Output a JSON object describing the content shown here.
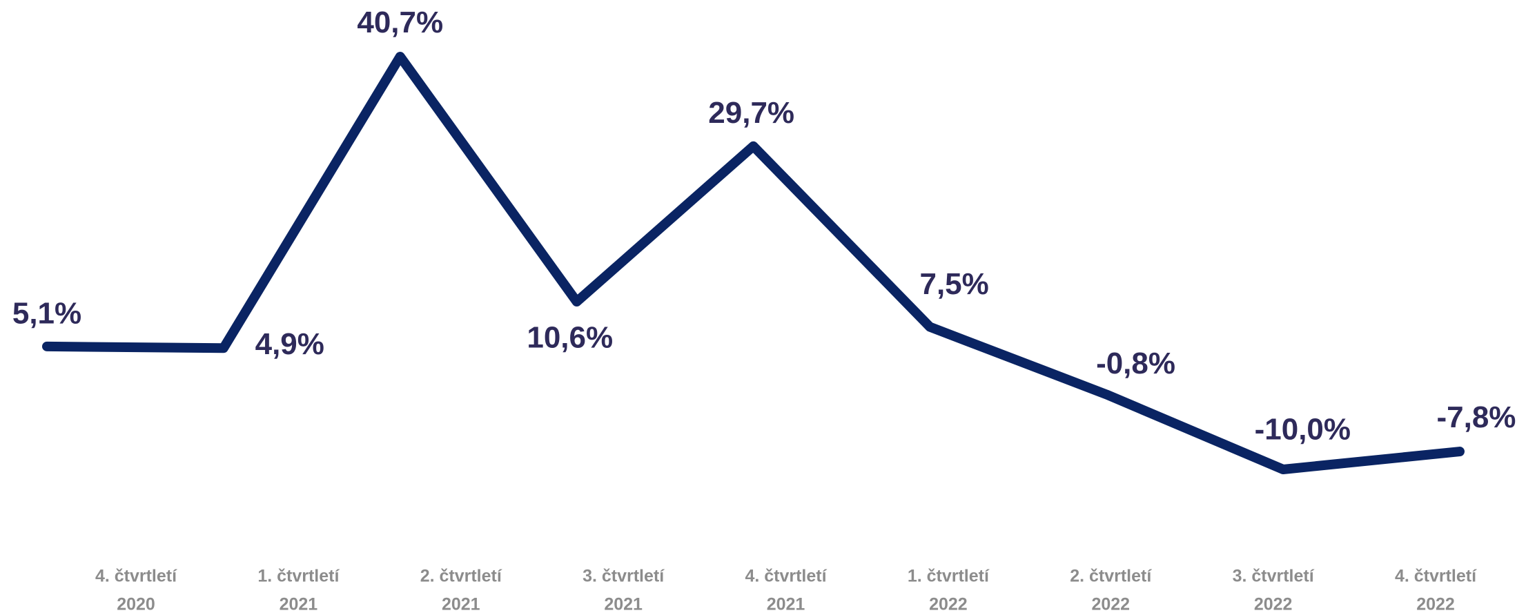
{
  "chart_data": {
    "type": "line",
    "categories": [
      [
        "4. čtvrtletí",
        "2020"
      ],
      [
        "1. čtvrtletí",
        "2021"
      ],
      [
        "2. čtvrtletí",
        "2021"
      ],
      [
        "3. čtvrtletí",
        "2021"
      ],
      [
        "4. čtvrtletí",
        "2021"
      ],
      [
        "1. čtvrtletí",
        "2022"
      ],
      [
        "2. čtvrtletí",
        "2022"
      ],
      [
        "3. čtvrtletí",
        "2022"
      ],
      [
        "4. čtvrtletí",
        "2022"
      ]
    ],
    "values": [
      5.1,
      4.9,
      40.7,
      10.6,
      29.7,
      7.5,
      -0.8,
      -10.0,
      -7.8
    ],
    "value_labels": [
      "5,1%",
      "4,9%",
      "40,7%",
      "10,6%",
      "29,7%",
      "7,5%",
      "-0,8%",
      "-10,0%",
      "-7,8%"
    ],
    "color": "#0a2463"
  }
}
